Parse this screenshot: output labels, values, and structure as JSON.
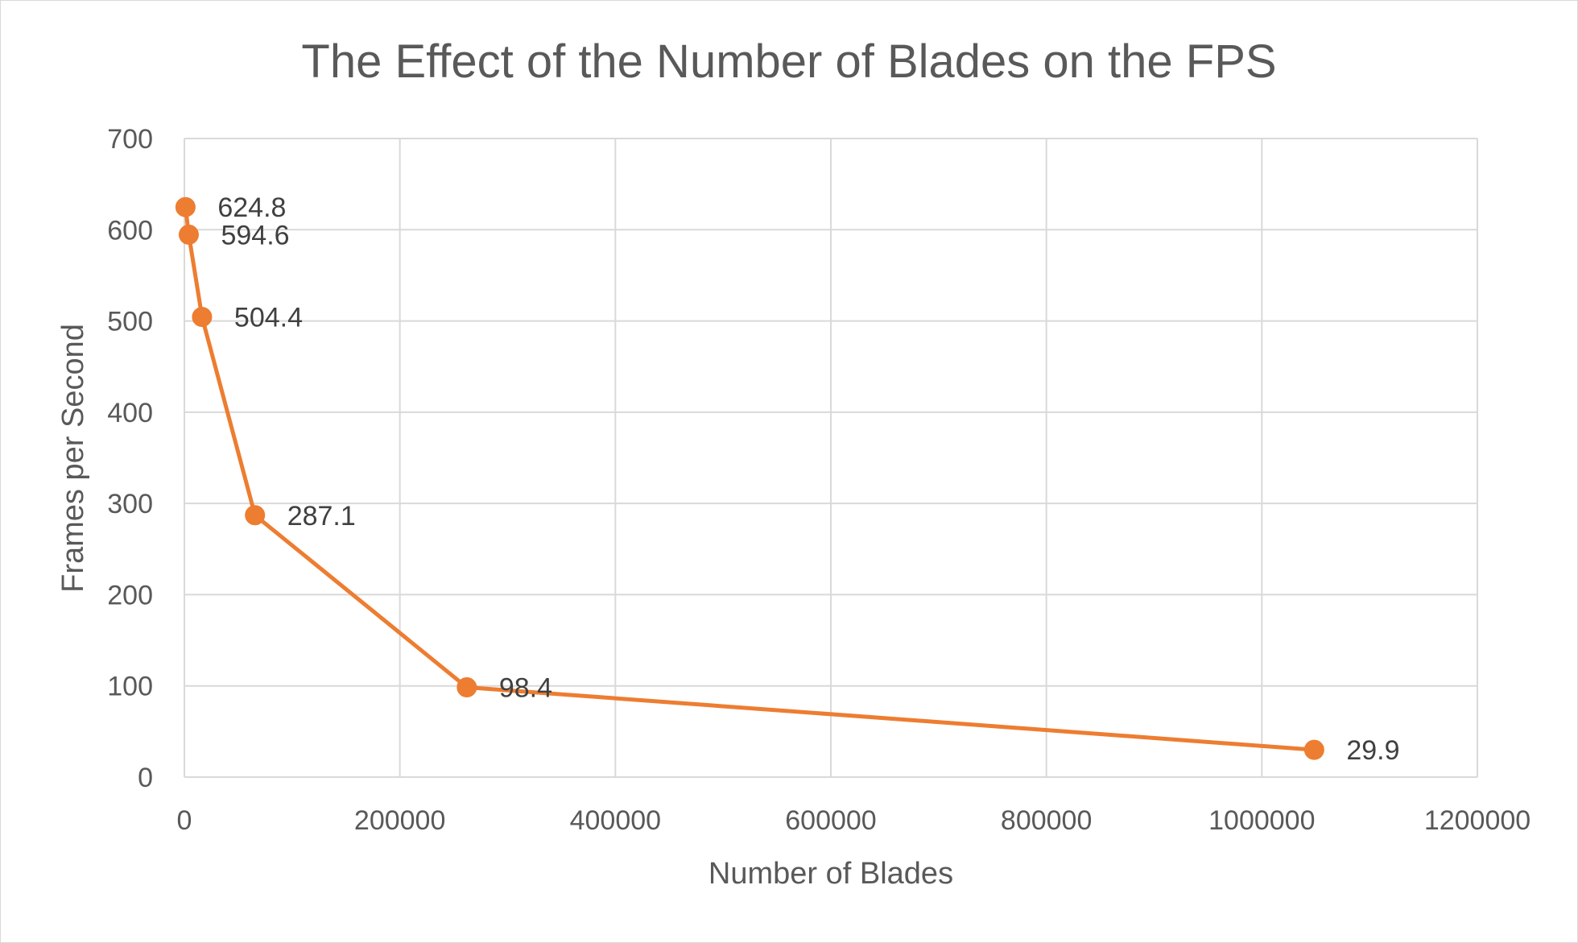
{
  "chart_data": {
    "type": "scatter",
    "title": "The Effect of the Number of Blades on the FPS",
    "xlabel": "Number of Blades",
    "ylabel": "Frames per Second",
    "xlim": [
      0,
      1200000
    ],
    "ylim": [
      0,
      700
    ],
    "x_ticks": [
      "0",
      "200000",
      "400000",
      "600000",
      "800000",
      "1000000",
      "1200000"
    ],
    "y_ticks": [
      "0",
      "100",
      "200",
      "300",
      "400",
      "500",
      "600",
      "700"
    ],
    "grid": true,
    "legend": "none",
    "series": [
      {
        "color": "#ed7d31",
        "points": [
          {
            "x": 1024,
            "y": 624.8,
            "label": "624.8"
          },
          {
            "x": 4096,
            "y": 594.6,
            "label": "594.6"
          },
          {
            "x": 16384,
            "y": 504.4,
            "label": "504.4"
          },
          {
            "x": 65536,
            "y": 287.1,
            "label": "287.1"
          },
          {
            "x": 262144,
            "y": 98.4,
            "label": "98.4"
          },
          {
            "x": 1048576,
            "y": 29.9,
            "label": "29.9"
          }
        ]
      }
    ]
  }
}
